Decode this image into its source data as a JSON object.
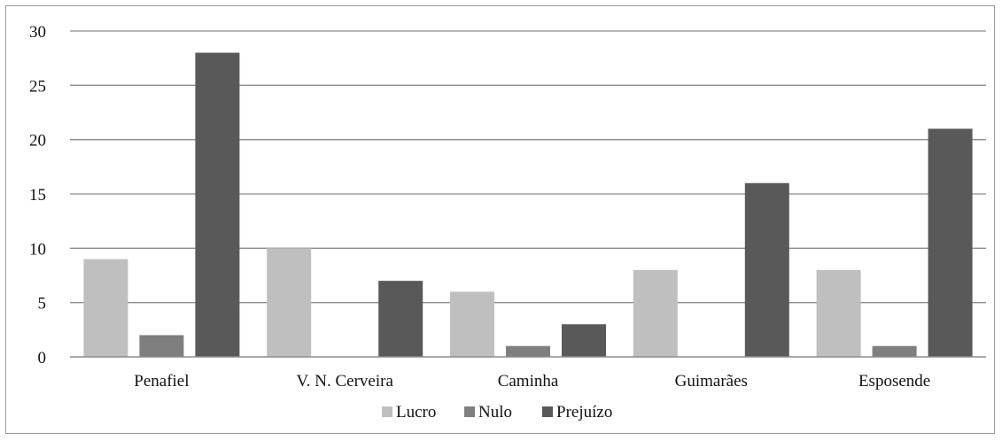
{
  "chart_data": {
    "type": "bar",
    "categories": [
      "Penafiel",
      "V. N. Cerveira",
      "Caminha",
      "Guimarães",
      "Esposende"
    ],
    "series": [
      {
        "name": "Lucro",
        "values": [
          9,
          10,
          6,
          8,
          8
        ],
        "color": "#bfbfbf"
      },
      {
        "name": "Nulo",
        "values": [
          2,
          0,
          1,
          0,
          1
        ],
        "color": "#7f7f7f"
      },
      {
        "name": "Prejuízo",
        "values": [
          28,
          7,
          3,
          16,
          21
        ],
        "color": "#595959"
      }
    ],
    "ylim": [
      0,
      30
    ],
    "yticks": [
      0,
      5,
      10,
      15,
      20,
      25,
      30
    ],
    "grid": true,
    "legend_position": "bottom",
    "title": "",
    "xlabel": "",
    "ylabel": ""
  }
}
